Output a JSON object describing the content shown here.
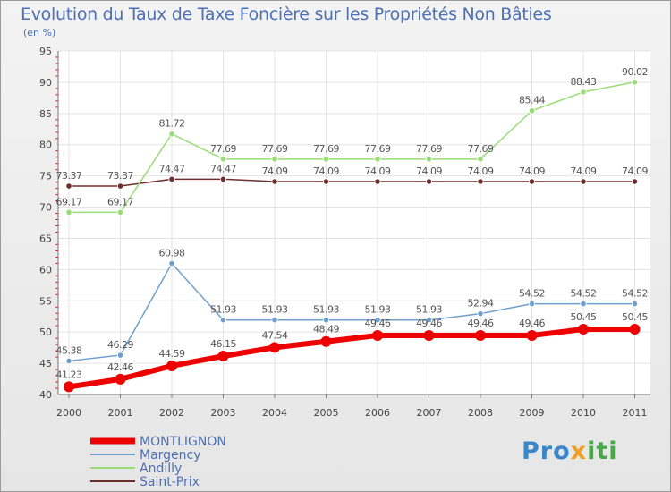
{
  "chart_data": {
    "type": "line",
    "title": "Evolution du Taux de Taxe Foncière sur les Propriétés Non Bâties",
    "unit_label": "(en %)",
    "x": [
      "2000",
      "2001",
      "2002",
      "2003",
      "2004",
      "2005",
      "2006",
      "2007",
      "2008",
      "2009",
      "2010",
      "2011"
    ],
    "ylim": [
      40,
      95
    ],
    "yticks": [
      40,
      45,
      50,
      55,
      60,
      65,
      70,
      75,
      80,
      85,
      90,
      95
    ],
    "series": [
      {
        "name": "Saint-Prix",
        "color": "#6e2e2e",
        "values": [
          73.37,
          73.37,
          74.47,
          74.47,
          74.09,
          74.09,
          74.09,
          74.09,
          74.09,
          74.09,
          74.09,
          74.09
        ],
        "labels": [
          "73.37",
          "73.37",
          "74.47",
          "74.47",
          "74.09",
          "74.09",
          "74.09",
          "74.09",
          "74.09",
          "74.09",
          "74.09",
          "74.09"
        ]
      },
      {
        "name": "Andilly",
        "color": "#99dd77",
        "values": [
          69.17,
          69.17,
          81.72,
          77.69,
          77.69,
          77.69,
          77.69,
          77.69,
          77.69,
          85.44,
          88.43,
          90.02
        ],
        "labels": [
          "69.17",
          "69.17",
          "81.72",
          "77.69",
          "77.69",
          "77.69",
          "77.69",
          "77.69",
          "77.69",
          "85.44",
          "88.43",
          "90.02"
        ]
      },
      {
        "name": "Margency",
        "color": "#6fa0cc",
        "values": [
          45.38,
          46.29,
          60.98,
          51.93,
          51.93,
          51.93,
          51.93,
          51.93,
          52.94,
          54.52,
          54.52,
          54.52
        ],
        "labels": [
          "45.38",
          "46.29",
          "60.98",
          "51.93",
          "51.93",
          "51.93",
          "51.93",
          "51.93",
          "52.94",
          "54.52",
          "54.52",
          "54.52"
        ]
      },
      {
        "name": "MONTLIGNON",
        "color": "#ee0000",
        "values": [
          41.23,
          42.46,
          44.59,
          46.15,
          47.54,
          48.49,
          49.46,
          49.46,
          49.46,
          49.46,
          50.45,
          50.45
        ],
        "labels": [
          "41.23",
          "42.46",
          "44.59",
          "46.15",
          "47.54",
          "48.49",
          "49.46",
          "49.46",
          "49.46",
          "49.46",
          "50.45",
          "50.45"
        ]
      }
    ],
    "legend": [
      "MONTLIGNON",
      "Margency",
      "Andilly",
      "Saint-Prix"
    ],
    "legend_colors": [
      "#ee0000",
      "#6fa0cc",
      "#99dd77",
      "#6e2e2e"
    ],
    "grid": true
  },
  "branding": {
    "logo_parts": [
      "Pro",
      "x",
      "iti"
    ]
  }
}
